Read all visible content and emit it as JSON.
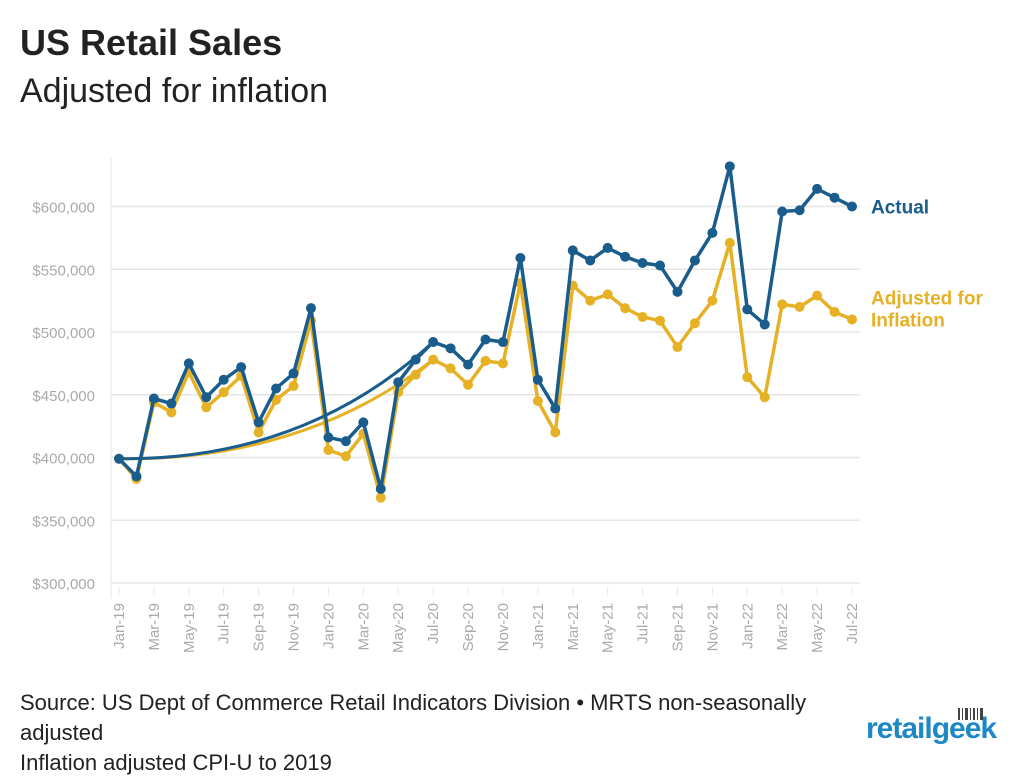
{
  "title": "US Retail Sales",
  "subtitle": "Adjusted for inflation",
  "source": {
    "line1": "Source: US Dept of Commerce Retail Indicators Division • MRTS non-seasonally adjusted",
    "line2": "Inflation adjusted CPI-U to 2019"
  },
  "logo": {
    "text_left": "retail",
    "text_right": "geek"
  },
  "colors": {
    "actual": "#1a5d8c",
    "adjusted": "#e6b124",
    "grid": "#e6e6e6",
    "axis_text": "#aaaaaa",
    "logo": "#1e88c7"
  },
  "chart_data": {
    "type": "line",
    "x": [
      "Jan-19",
      "Feb-19",
      "Mar-19",
      "Apr-19",
      "May-19",
      "Jun-19",
      "Jul-19",
      "Aug-19",
      "Sep-19",
      "Oct-19",
      "Nov-19",
      "Dec-19",
      "Jan-20",
      "Feb-20",
      "Mar-20",
      "Apr-20",
      "May-20",
      "Jun-20",
      "Jul-20",
      "Aug-20",
      "Sep-20",
      "Oct-20",
      "Nov-20",
      "Dec-20",
      "Jan-21",
      "Feb-21",
      "Mar-21",
      "Apr-21",
      "May-21",
      "Jun-21",
      "Jul-21",
      "Aug-21",
      "Sep-21",
      "Oct-21",
      "Nov-21",
      "Dec-21",
      "Jan-22",
      "Feb-22",
      "Mar-22",
      "Apr-22",
      "May-22",
      "Jun-22",
      "Jul-22"
    ],
    "x_tick_labels": [
      "Jan-19",
      "Mar-19",
      "May-19",
      "Jul-19",
      "Sep-19",
      "Nov-19",
      "Jan-20",
      "Mar-20",
      "May-20",
      "Jul-20",
      "Sep-20",
      "Nov-20",
      "Jan-21",
      "Mar-21",
      "May-21",
      "Jul-21",
      "Sep-21",
      "Nov-21",
      "Jan-22",
      "Mar-22",
      "May-22",
      "Jul-22"
    ],
    "y_tick_labels": [
      "$300,000",
      "$350,000",
      "$400,000",
      "$450,000",
      "$500,000",
      "$550,000",
      "$600,000"
    ],
    "ylim": [
      300000,
      640000
    ],
    "grid": true,
    "legend": "inline-right",
    "series": [
      {
        "name": "Actual",
        "values": [
          399000,
          385000,
          447000,
          443000,
          475000,
          448000,
          462000,
          472000,
          428000,
          455000,
          467000,
          519000,
          416000,
          413000,
          428000,
          375000,
          460000,
          478000,
          492000,
          487000,
          474000,
          494000,
          492000,
          559000,
          462000,
          439000,
          565000,
          557000,
          567000,
          560000,
          555000,
          553000,
          532000,
          557000,
          579000,
          632000,
          518000,
          506000,
          596000,
          597000,
          614000,
          607000,
          600000
        ]
      },
      {
        "name": "Adjusted for Inflation",
        "values": [
          399000,
          383000,
          444000,
          436000,
          468000,
          440000,
          452000,
          465000,
          420000,
          446000,
          457000,
          509000,
          406000,
          401000,
          419000,
          368000,
          452000,
          466000,
          478000,
          471000,
          458000,
          477000,
          475000,
          539000,
          445000,
          420000,
          537000,
          525000,
          530000,
          519000,
          512000,
          509000,
          488000,
          507000,
          525000,
          571000,
          464000,
          448000,
          522000,
          520000,
          529000,
          516000,
          510000
        ]
      }
    ]
  }
}
